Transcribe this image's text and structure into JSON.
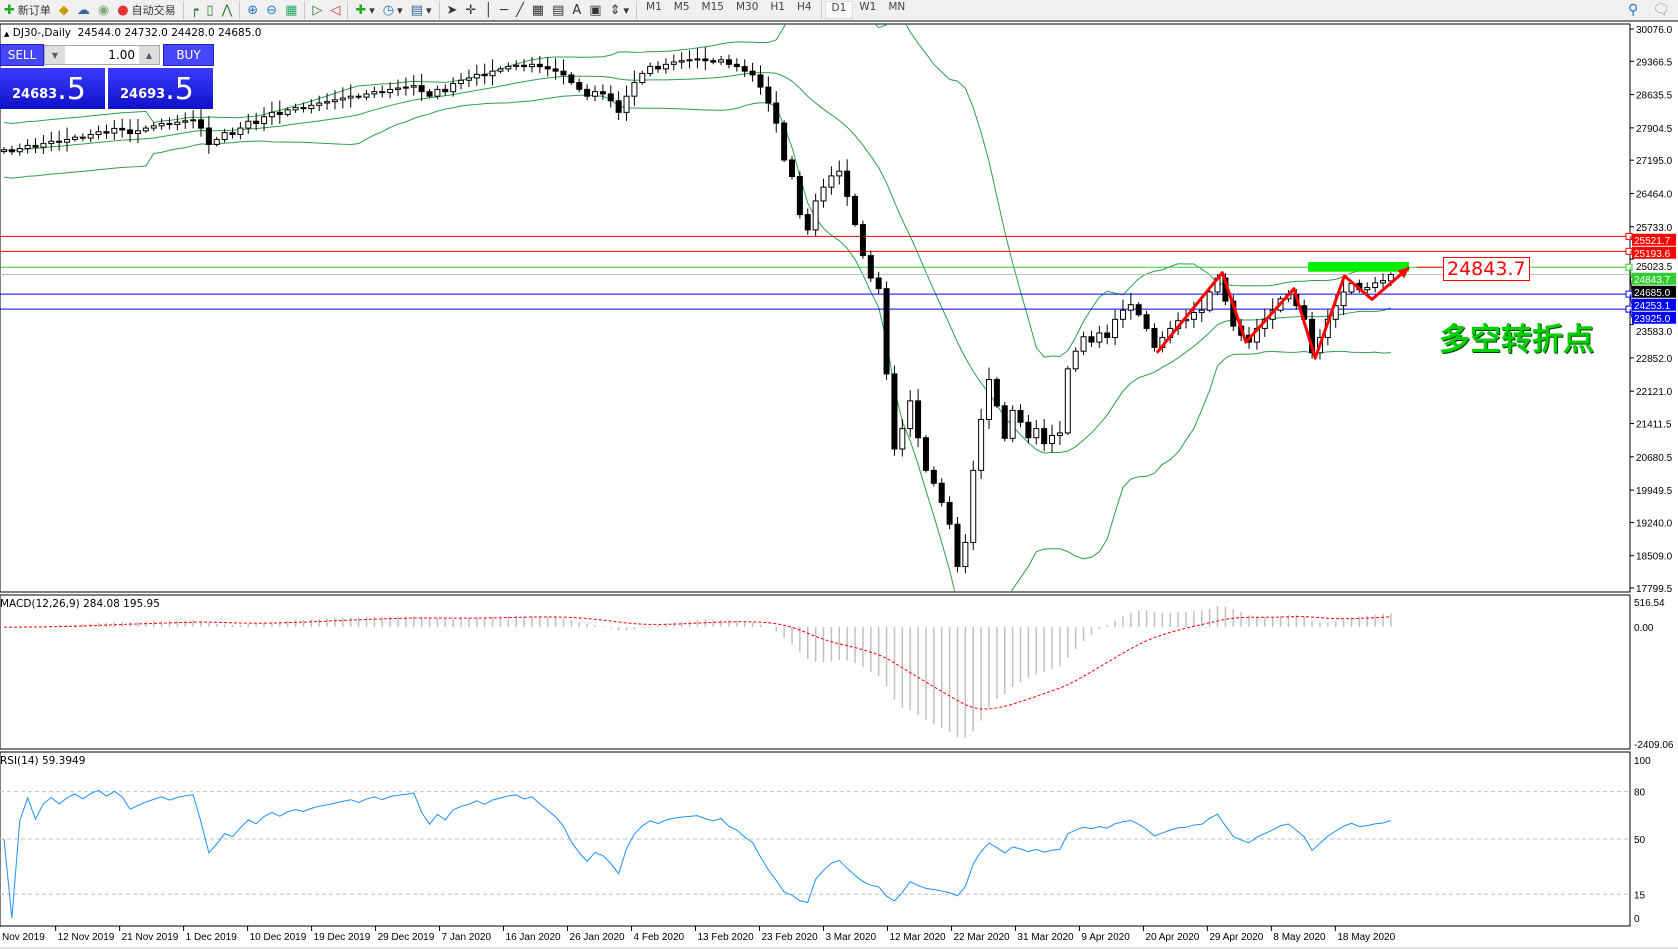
{
  "toolbar": {
    "new_order": "新订单",
    "auto_trading": "自动交易",
    "timeframes": [
      "M1",
      "M5",
      "M15",
      "M30",
      "H1",
      "H4",
      "D1",
      "W1",
      "MN"
    ],
    "active_timeframe": "D1"
  },
  "chart_header": {
    "symbol": "DJ30-,Daily",
    "open": "24544.0",
    "high": "24732.0",
    "low": "24428.0",
    "close": "24685.0"
  },
  "trade_panel": {
    "sell_label": "SELL",
    "buy_label": "BUY",
    "lot": "1.00",
    "sell_main": "24683",
    "sell_frac": ".5",
    "buy_main": "24693",
    "buy_frac": ".5",
    "color": "#3b3bff"
  },
  "annotations": {
    "level_box": "24843.7",
    "text": "多空转折点"
  },
  "chart_data": {
    "type": "candlestick",
    "price_axis": [
      "30076.0",
      "29366.5",
      "28635.5",
      "27904.5",
      "27195.0",
      "26464.0",
      "25733.0",
      "25023.5",
      "23583.0",
      "22852.0",
      "22121.0",
      "21411.5",
      "20680.5",
      "19949.5",
      "19240.0",
      "18509.0",
      "17799.5"
    ],
    "ylim": [
      17799.5,
      30076.0
    ],
    "date_labels": [
      "Nov 2019",
      "12 Nov 2019",
      "21 Nov 2019",
      "1 Dec 2019",
      "10 Dec 2019",
      "19 Dec 2019",
      "29 Dec 2019",
      "7 Jan 2020",
      "16 Jan 2020",
      "26 Jan 2020",
      "4 Feb 2020",
      "13 Feb 2020",
      "23 Feb 2020",
      "3 Mar 2020",
      "12 Mar 2020",
      "22 Mar 2020",
      "31 Mar 2020",
      "9 Apr 2020",
      "20 Apr 2020",
      "29 Apr 2020",
      "8 May 2020",
      "18 May 2020"
    ],
    "close": [
      27424,
      27380,
      27450,
      27520,
      27480,
      27560,
      27610,
      27590,
      27650,
      27700,
      27680,
      27760,
      27820,
      27790,
      27893,
      27860,
      27780,
      27840,
      27900,
      27950,
      28000,
      27980,
      28030,
      28060,
      28081,
      27900,
      27541,
      27650,
      27800,
      27760,
      27900,
      28050,
      28000,
      28150,
      28245,
      28200,
      28300,
      28350,
      28330,
      28400,
      28450,
      28480,
      28520,
      28560,
      28600,
      28580,
      28650,
      28700,
      28680,
      28750,
      28780,
      28800,
      28832,
      28700,
      28600,
      28750,
      28700,
      28879,
      28950,
      29000,
      29080,
      29050,
      29150,
      29200,
      29255,
      29280,
      29250,
      29300,
      29250,
      29200,
      29150,
      29067,
      28900,
      28750,
      28600,
      28700,
      28650,
      28500,
      28245,
      28600,
      28900,
      29100,
      29255,
      29200,
      29300,
      29350,
      29380,
      29400,
      29419,
      29380,
      29350,
      29400,
      29300,
      29250,
      29150,
      29067,
      28800,
      28450,
      28010,
      27200,
      26837,
      26000,
      25664,
      26300,
      26603,
      26850,
      26954,
      26400,
      25781,
      25100,
      24607,
      24373,
      22500,
      20853,
      21300,
      21909,
      21100,
      20383,
      20100,
      19679,
      19200,
      18271,
      18800,
      20383,
      21500,
      22378,
      21800,
      21087,
      21700,
      21439,
      21100,
      21300,
      20970,
      21150,
      21205,
      22613,
      23000,
      23317,
      23200,
      23400,
      23300,
      23700,
      23900,
      24021,
      23800,
      23500,
      23082,
      23300,
      23500,
      23669,
      23700,
      23850,
      23900,
      24300,
      24607,
      24100,
      23552,
      23350,
      23200,
      23500,
      23700,
      23900,
      24150,
      24256,
      24000,
      23700,
      22965,
      23300,
      23700,
      24000,
      24300,
      24490,
      24350,
      24400,
      24500,
      24550,
      24685
    ],
    "last_bar": {
      "open": 24544.0,
      "high": 24732.0,
      "low": 24428.0,
      "close": 24685.0
    },
    "levels": [
      {
        "price": 25521.7,
        "label": "25521.7",
        "color": "#ff0000"
      },
      {
        "price": 25193.6,
        "label": "25193.6",
        "color": "#ff0000"
      },
      {
        "price": 24843.7,
        "label": "24843.7",
        "color": "#32cd32"
      },
      {
        "price": 24685.0,
        "label": "24685.0",
        "color": "#000000"
      },
      {
        "price": 24253.1,
        "label": "24253.1",
        "color": "#0000ff"
      },
      {
        "price": 23925.0,
        "label": "23925.0",
        "color": "#0000ff"
      }
    ],
    "highlight_zone": {
      "from_bar": 165.5,
      "to_bar": 178.3,
      "price_top": 24960,
      "price_bottom": 24745,
      "color": "#00ee00"
    },
    "zigzag": [
      [
        146.3,
        22965
      ],
      [
        154.6,
        24725
      ],
      [
        157.6,
        23199
      ],
      [
        163.7,
        24373
      ],
      [
        166.4,
        22847
      ],
      [
        170.1,
        24654
      ],
      [
        173.6,
        24138
      ],
      [
        178.3,
        24842
      ]
    ],
    "bollinger": {
      "period": 20,
      "deviation": 2,
      "color": "#2e9e4e"
    },
    "macd": {
      "label": "MACD(12,26,9) 284.08 195.95",
      "axis": [
        "516.54",
        "0.00",
        "-2409.06"
      ],
      "ylim": [
        -2409.06,
        516.54
      ],
      "signal_color": "#ff0000",
      "hist_color": "#c0c0c0"
    },
    "rsi": {
      "label": "RSI(14) 59.3949",
      "axis": [
        "100",
        "80",
        "50",
        "15",
        "0"
      ],
      "levels": [
        80,
        50,
        15
      ],
      "color": "#1e90ff"
    }
  }
}
